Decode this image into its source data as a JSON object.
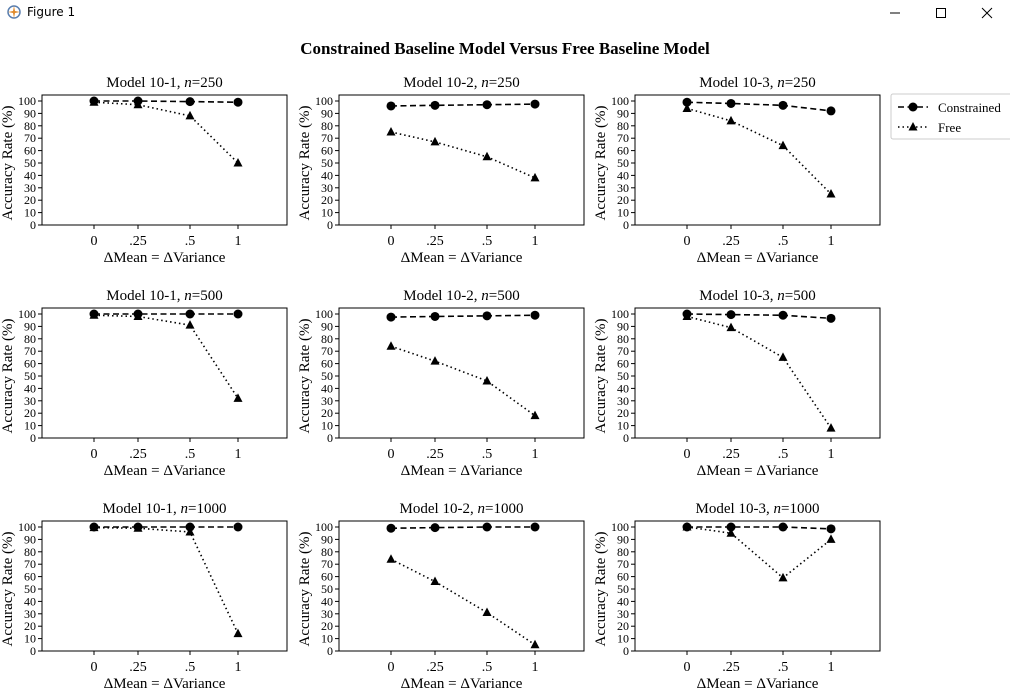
{
  "window": {
    "title": "Figure 1",
    "icons": [
      "app-icon",
      "minimize-icon",
      "maximize-icon",
      "close-icon"
    ]
  },
  "figure": {
    "suptitle": "Constrained Baseline Model Versus Free Baseline Model",
    "legend": {
      "placement": "right-of-top-right-panel",
      "entries": [
        {
          "label": "Constrained",
          "style": "dashed",
          "marker": "circle"
        },
        {
          "label": "Free",
          "style": "dotted",
          "marker": "triangle"
        }
      ]
    }
  },
  "chart_data": [
    {
      "type": "line",
      "title_model": "Model 10-1",
      "title_n": "250",
      "xlabel": "ΔMean = ΔVariance",
      "ylabel": "Accuracy Rate (%)",
      "categories": [
        "0",
        ".25",
        ".5",
        "1"
      ],
      "ylim": [
        0,
        100
      ],
      "yticks": [
        0,
        10,
        20,
        30,
        40,
        50,
        60,
        70,
        80,
        90,
        100
      ],
      "series": [
        {
          "name": "Constrained",
          "values": [
            100,
            100,
            99.5,
            99
          ]
        },
        {
          "name": "Free",
          "values": [
            99,
            97,
            88,
            50
          ]
        }
      ]
    },
    {
      "type": "line",
      "title_model": "Model 10-2",
      "title_n": "250",
      "xlabel": "ΔMean = ΔVariance",
      "ylabel": "Accuracy Rate (%)",
      "categories": [
        "0",
        ".25",
        ".5",
        "1"
      ],
      "ylim": [
        0,
        100
      ],
      "yticks": [
        0,
        10,
        20,
        30,
        40,
        50,
        60,
        70,
        80,
        90,
        100
      ],
      "series": [
        {
          "name": "Constrained",
          "values": [
            96,
            96.5,
            97,
            97.5
          ]
        },
        {
          "name": "Free",
          "values": [
            75,
            67,
            55,
            38
          ]
        }
      ]
    },
    {
      "type": "line",
      "title_model": "Model 10-3",
      "title_n": "250",
      "xlabel": "ΔMean = ΔVariance",
      "ylabel": "Accuracy Rate (%)",
      "categories": [
        "0",
        ".25",
        ".5",
        "1"
      ],
      "ylim": [
        0,
        100
      ],
      "yticks": [
        0,
        10,
        20,
        30,
        40,
        50,
        60,
        70,
        80,
        90,
        100
      ],
      "series": [
        {
          "name": "Constrained",
          "values": [
            99,
            98,
            96.5,
            92
          ]
        },
        {
          "name": "Free",
          "values": [
            94,
            84,
            64,
            25
          ]
        }
      ]
    },
    {
      "type": "line",
      "title_model": "Model 10-1",
      "title_n": "500",
      "xlabel": "ΔMean = ΔVariance",
      "ylabel": "Accuracy Rate (%)",
      "categories": [
        "0",
        ".25",
        ".5",
        "1"
      ],
      "ylim": [
        0,
        100
      ],
      "yticks": [
        0,
        10,
        20,
        30,
        40,
        50,
        60,
        70,
        80,
        90,
        100
      ],
      "series": [
        {
          "name": "Constrained",
          "values": [
            100,
            100,
            100,
            100
          ]
        },
        {
          "name": "Free",
          "values": [
            99,
            98,
            91,
            32
          ]
        }
      ]
    },
    {
      "type": "line",
      "title_model": "Model 10-2",
      "title_n": "500",
      "xlabel": "ΔMean = ΔVariance",
      "ylabel": "Accuracy Rate (%)",
      "categories": [
        "0",
        ".25",
        ".5",
        "1"
      ],
      "ylim": [
        0,
        100
      ],
      "yticks": [
        0,
        10,
        20,
        30,
        40,
        50,
        60,
        70,
        80,
        90,
        100
      ],
      "series": [
        {
          "name": "Constrained",
          "values": [
            97.5,
            98,
            98.5,
            99
          ]
        },
        {
          "name": "Free",
          "values": [
            74,
            62,
            46,
            18
          ]
        }
      ]
    },
    {
      "type": "line",
      "title_model": "Model 10-3",
      "title_n": "500",
      "xlabel": "ΔMean = ΔVariance",
      "ylabel": "Accuracy Rate (%)",
      "categories": [
        "0",
        ".25",
        ".5",
        "1"
      ],
      "ylim": [
        0,
        100
      ],
      "yticks": [
        0,
        10,
        20,
        30,
        40,
        50,
        60,
        70,
        80,
        90,
        100
      ],
      "series": [
        {
          "name": "Constrained",
          "values": [
            100,
            99.5,
            99,
            96.5
          ]
        },
        {
          "name": "Free",
          "values": [
            98,
            89,
            65,
            8
          ]
        }
      ]
    },
    {
      "type": "line",
      "title_model": "Model 10-1",
      "title_n": "1000",
      "xlabel": "ΔMean = ΔVariance",
      "ylabel": "Accuracy Rate (%)",
      "categories": [
        "0",
        ".25",
        ".5",
        "1"
      ],
      "ylim": [
        0,
        100
      ],
      "yticks": [
        0,
        10,
        20,
        30,
        40,
        50,
        60,
        70,
        80,
        90,
        100
      ],
      "series": [
        {
          "name": "Constrained",
          "values": [
            100,
            100,
            100,
            100
          ]
        },
        {
          "name": "Free",
          "values": [
            99.5,
            99,
            96,
            14
          ]
        }
      ]
    },
    {
      "type": "line",
      "title_model": "Model 10-2",
      "title_n": "1000",
      "xlabel": "ΔMean = ΔVariance",
      "ylabel": "Accuracy Rate (%)",
      "categories": [
        "0",
        ".25",
        ".5",
        "1"
      ],
      "ylim": [
        0,
        100
      ],
      "yticks": [
        0,
        10,
        20,
        30,
        40,
        50,
        60,
        70,
        80,
        90,
        100
      ],
      "series": [
        {
          "name": "Constrained",
          "values": [
            99,
            99.5,
            100,
            100
          ]
        },
        {
          "name": "Free",
          "values": [
            74,
            56,
            31,
            5
          ]
        }
      ]
    },
    {
      "type": "line",
      "title_model": "Model 10-3",
      "title_n": "1000",
      "xlabel": "ΔMean = ΔVariance",
      "ylabel": "Accuracy Rate (%)",
      "categories": [
        "0",
        ".25",
        ".5",
        "1"
      ],
      "ylim": [
        0,
        100
      ],
      "yticks": [
        0,
        10,
        20,
        30,
        40,
        50,
        60,
        70,
        80,
        90,
        100
      ],
      "series": [
        {
          "name": "Constrained",
          "values": [
            100,
            100,
            100,
            98.5
          ]
        },
        {
          "name": "Free",
          "values": [
            100,
            95,
            59,
            90
          ]
        }
      ]
    }
  ]
}
